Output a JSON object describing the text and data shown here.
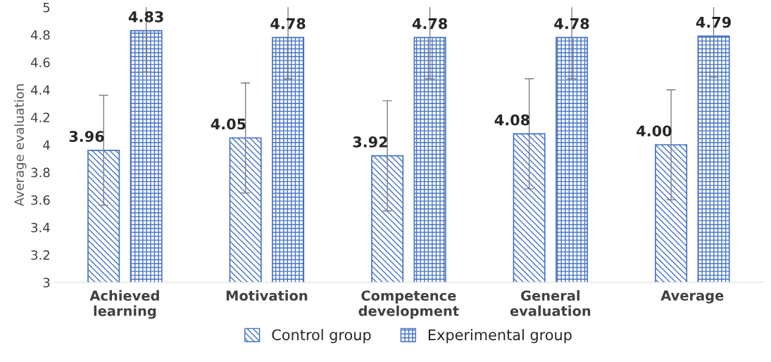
{
  "chart_data": {
    "type": "bar",
    "ylabel": "Average evaluation",
    "categories": [
      "Achieved\nlearning",
      "Motivation",
      "Competence\ndevelopment",
      "General\nevaluation",
      "Average"
    ],
    "series": [
      {
        "name": "Control group",
        "color": "#4472c4",
        "values": [
          3.96,
          4.05,
          3.92,
          4.08,
          4.0
        ],
        "errors": [
          0.4,
          0.4,
          0.4,
          0.4,
          0.4
        ],
        "value_labels": [
          "3.96",
          "4.05",
          "3.92",
          "4.08",
          "4.00"
        ]
      },
      {
        "name": "Experimental group",
        "color": "#4472c4",
        "values": [
          4.83,
          4.78,
          4.78,
          4.78,
          4.79
        ],
        "errors": [
          [
            4.53,
            5
          ],
          [
            4.48,
            5
          ],
          [
            4.48,
            5
          ],
          [
            4.48,
            5
          ],
          [
            4.49,
            5
          ]
        ],
        "value_labels": [
          "4.83",
          "4.78",
          "4.78",
          "4.78",
          "4.79"
        ]
      }
    ],
    "ylim": [
      3,
      5
    ],
    "yticks": [
      3,
      3.2,
      3.4,
      3.6,
      3.8,
      4,
      4.2,
      4.4,
      4.6,
      4.8,
      5
    ],
    "grid": false,
    "legend": "bottom"
  }
}
